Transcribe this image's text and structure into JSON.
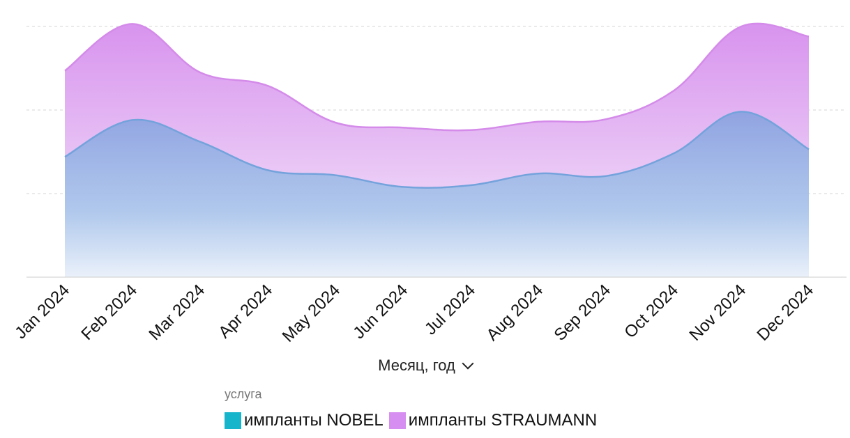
{
  "chart_data": {
    "type": "area",
    "stacked": true,
    "categories": [
      "Jan 2024",
      "Feb 2024",
      "Mar 2024",
      "Apr 2024",
      "May 2024",
      "Jun 2024",
      "Jul 2024",
      "Aug 2024",
      "Sep 2024",
      "Oct 2024",
      "Nov 2024",
      "Dec 2024"
    ],
    "series": [
      {
        "name": "импланты NOBEL",
        "color": "#17b5cc",
        "values": [
          14.4,
          18.8,
          16.2,
          12.8,
          12.2,
          10.8,
          11.0,
          12.4,
          12.1,
          14.8,
          19.8,
          15.3
        ]
      },
      {
        "name": "импланты STRAUMANN",
        "color": "#d68ef0",
        "values": [
          10.3,
          11.5,
          8.3,
          10.1,
          6.3,
          7.1,
          6.6,
          6.2,
          6.8,
          7.5,
          10.2,
          13.5
        ]
      }
    ],
    "ylim": [
      0,
      30
    ],
    "grid": true,
    "xlabel": "Месяц, год",
    "legend_title": "услуга",
    "legend_position": "bottom"
  }
}
